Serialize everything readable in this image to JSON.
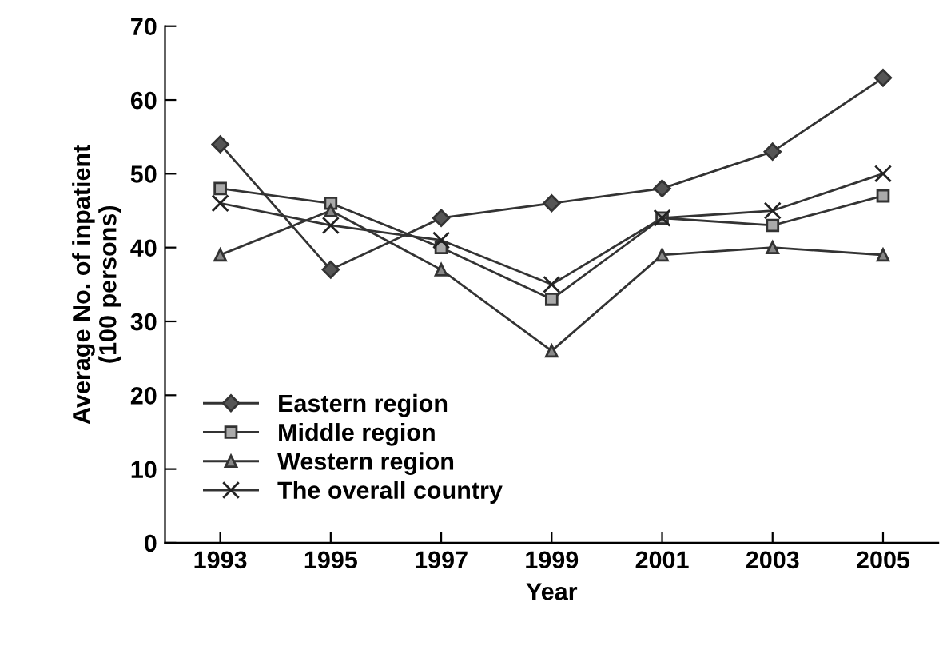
{
  "chart_data": {
    "type": "line",
    "xlabel": "Year",
    "ylabel": "Average No. of inpatient\n(100 persons)",
    "x": [
      1993,
      1995,
      1997,
      1999,
      2001,
      2003,
      2005
    ],
    "xlim": [
      1992,
      2006
    ],
    "xticks": [
      1993,
      1995,
      1997,
      1999,
      2001,
      2003,
      2005
    ],
    "ylim": [
      0,
      70
    ],
    "yticks": [
      0,
      10,
      20,
      30,
      40,
      50,
      60,
      70
    ],
    "grid": false,
    "legend": "bottom left",
    "line_style": "solid",
    "series": [
      {
        "name": "Eastern region",
        "color": "#555555",
        "marker": "diamond",
        "values": [
          54,
          37,
          44,
          46,
          48,
          53,
          63
        ]
      },
      {
        "name": "Middle region",
        "color": "#aaaaaa",
        "marker": "square",
        "values": [
          48,
          46,
          40,
          33,
          44,
          43,
          47
        ]
      },
      {
        "name": "Western region",
        "color": "#888888",
        "marker": "triangle",
        "values": [
          39,
          45,
          37,
          26,
          39,
          40,
          39
        ]
      },
      {
        "name": "The overall country",
        "color": "#222222",
        "marker": "cross",
        "values": [
          46,
          43,
          41,
          35,
          44,
          45,
          50
        ]
      }
    ]
  }
}
